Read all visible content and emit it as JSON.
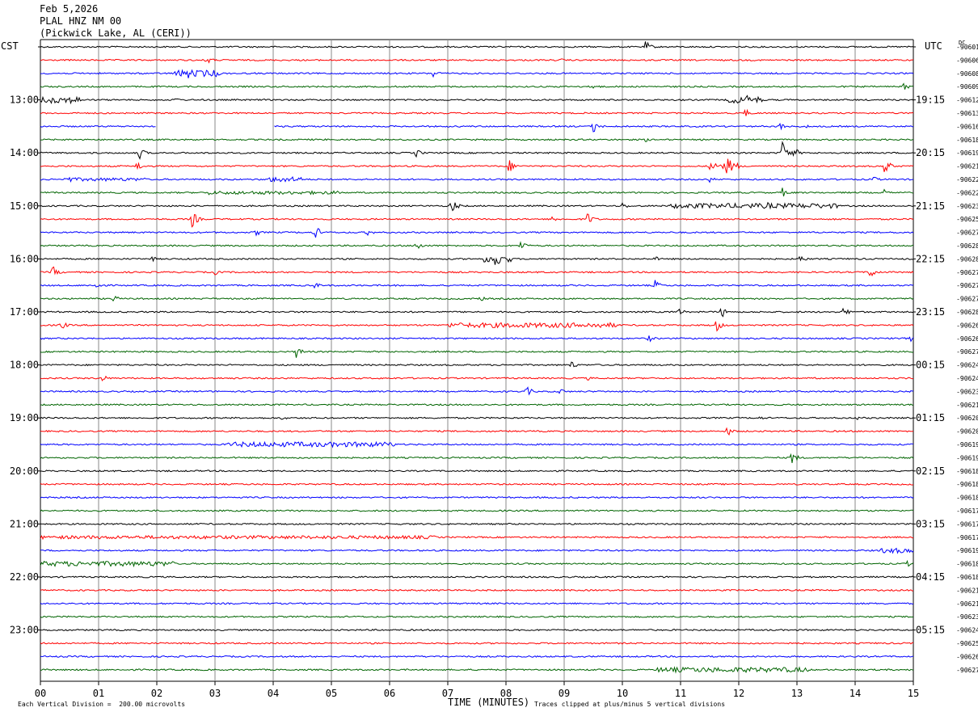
{
  "header": {
    "date": "Feb 5,2026",
    "station": "PLAL HNZ NM 00",
    "location": "(Pickwick Lake, AL (CERI))"
  },
  "chart_data": {
    "type": "line",
    "left_axis_label": "CST",
    "right_axis_label": "UTC",
    "dc_label": "DC",
    "xlabel": "TIME (MINUTES)",
    "xlim": [
      0,
      15
    ],
    "x_ticks": [
      "00",
      "01",
      "02",
      "03",
      "04",
      "05",
      "06",
      "07",
      "08",
      "09",
      "10",
      "11",
      "12",
      "13",
      "14",
      "15"
    ],
    "grid": true,
    "trace_colors": [
      "#000000",
      "#ff0000",
      "#0000ff",
      "#006400"
    ],
    "left_hour_labels": [
      "13:00",
      "14:00",
      "15:00",
      "16:00",
      "17:00",
      "18:00",
      "19:00",
      "20:00",
      "21:00",
      "22:00",
      "23:00"
    ],
    "right_hour_labels": [
      "19:15",
      "20:15",
      "21:15",
      "22:15",
      "23:15",
      "00:15",
      "01:15",
      "02:15",
      "03:15",
      "04:15",
      "05:15"
    ],
    "dc_offsets": [
      "-90601",
      "-90606",
      "-90608",
      "-90609",
      "-90612",
      "-90613",
      "-90616",
      "-90618",
      "-90619",
      "-90621",
      "-90622",
      "-90622",
      "-90623",
      "-90625",
      "-90627",
      "-90628",
      "-90628",
      "-90627",
      "-90627",
      "-90627",
      "-90628",
      "-90626",
      "-90626",
      "-90627",
      "-90624",
      "-90624",
      "-90623",
      "-90621",
      "-90620",
      "-90620",
      "-90619",
      "-90619",
      "-90618",
      "-90618",
      "-90618",
      "-90617",
      "-90617",
      "-90617",
      "-90619",
      "-90618",
      "-90618",
      "-90621",
      "-90621",
      "-90623",
      "-90624",
      "-90625",
      "-90626",
      "-90627"
    ],
    "footer_left": "Each Vertical Division =  200.00 microvolts",
    "footer_right": "Traces clipped at plus/minus 5 vertical divisions",
    "events": [
      {
        "trace": 0,
        "minute": 10.4,
        "amp": 8
      },
      {
        "trace": 1,
        "minute": 2.85,
        "amp": 6
      },
      {
        "trace": 1,
        "minute": 8.95,
        "amp": 2
      },
      {
        "trace": 2,
        "minute": 2.5,
        "amp": 12
      },
      {
        "trace": 2,
        "minute": 6.75,
        "amp": 6
      },
      {
        "trace": 3,
        "minute": 9.5,
        "amp": 6
      },
      {
        "trace": 3,
        "minute": 14.8,
        "amp": 7
      },
      {
        "trace": 4,
        "minute": 0.35,
        "amp": 9
      },
      {
        "trace": 4,
        "minute": 2.3,
        "amp": 4
      },
      {
        "trace": 4,
        "minute": 12.1,
        "amp": 9
      },
      {
        "trace": 5,
        "minute": 12.1,
        "amp": 6
      },
      {
        "trace": 6,
        "minute": 9.5,
        "amp": 9
      },
      {
        "trace": 6,
        "minute": 12.7,
        "amp": 6
      },
      {
        "trace": 6,
        "minute": 13.1,
        "amp": 4
      },
      {
        "trace": 7,
        "minute": 10.4,
        "amp": 3
      },
      {
        "trace": 8,
        "minute": 1.7,
        "amp": 8
      },
      {
        "trace": 8,
        "minute": 6.45,
        "amp": 6
      },
      {
        "trace": 8,
        "minute": 12.75,
        "amp": 16
      },
      {
        "trace": 8,
        "minute": 12.95,
        "amp": 7
      },
      {
        "trace": 9,
        "minute": 1.65,
        "amp": 7
      },
      {
        "trace": 9,
        "minute": 8.05,
        "amp": 9
      },
      {
        "trace": 9,
        "minute": 11.8,
        "amp": 14
      },
      {
        "trace": 9,
        "minute": 14.5,
        "amp": 12
      },
      {
        "trace": 10,
        "minute": 0.5,
        "amp": 4
      },
      {
        "trace": 10,
        "minute": 4.1,
        "amp": 6
      },
      {
        "trace": 10,
        "minute": 11.5,
        "amp": 4
      },
      {
        "trace": 10,
        "minute": 14.3,
        "amp": 5
      },
      {
        "trace": 11,
        "minute": 2.9,
        "amp": 4
      },
      {
        "trace": 11,
        "minute": 12.75,
        "amp": 6
      },
      {
        "trace": 11,
        "minute": 14.5,
        "amp": 4
      },
      {
        "trace": 12,
        "minute": 7.05,
        "amp": 12
      },
      {
        "trace": 12,
        "minute": 10.0,
        "amp": 5
      },
      {
        "trace": 12,
        "minute": 12.5,
        "amp": 5
      },
      {
        "trace": 13,
        "minute": 2.6,
        "amp": 12
      },
      {
        "trace": 13,
        "minute": 8.8,
        "amp": 5
      },
      {
        "trace": 13,
        "minute": 9.4,
        "amp": 9
      },
      {
        "trace": 14,
        "minute": 3.7,
        "amp": 5
      },
      {
        "trace": 14,
        "minute": 4.7,
        "amp": 12
      },
      {
        "trace": 14,
        "minute": 5.6,
        "amp": 6
      },
      {
        "trace": 15,
        "minute": 6.45,
        "amp": 8
      },
      {
        "trace": 15,
        "minute": 8.25,
        "amp": 7
      },
      {
        "trace": 16,
        "minute": 1.9,
        "amp": 4
      },
      {
        "trace": 16,
        "minute": 7.8,
        "amp": 16
      },
      {
        "trace": 16,
        "minute": 10.55,
        "amp": 4
      },
      {
        "trace": 16,
        "minute": 13.05,
        "amp": 6
      },
      {
        "trace": 17,
        "minute": 0.2,
        "amp": 9
      },
      {
        "trace": 17,
        "minute": 3.0,
        "amp": 4
      },
      {
        "trace": 17,
        "minute": 14.25,
        "amp": 9
      },
      {
        "trace": 18,
        "minute": 0.95,
        "amp": 6
      },
      {
        "trace": 18,
        "minute": 4.7,
        "amp": 5
      },
      {
        "trace": 18,
        "minute": 10.55,
        "amp": 8
      },
      {
        "trace": 19,
        "minute": 1.25,
        "amp": 5
      },
      {
        "trace": 19,
        "minute": 7.55,
        "amp": 4
      },
      {
        "trace": 20,
        "minute": 10.95,
        "amp": 6
      },
      {
        "trace": 20,
        "minute": 11.7,
        "amp": 8
      },
      {
        "trace": 20,
        "minute": 13.8,
        "amp": 7
      },
      {
        "trace": 21,
        "minute": 0.35,
        "amp": 7
      },
      {
        "trace": 21,
        "minute": 11.6,
        "amp": 10
      },
      {
        "trace": 22,
        "minute": 10.45,
        "amp": 5
      },
      {
        "trace": 22,
        "minute": 14.95,
        "amp": 4
      },
      {
        "trace": 23,
        "minute": 4.4,
        "amp": 9
      },
      {
        "trace": 24,
        "minute": 9.1,
        "amp": 7
      },
      {
        "trace": 25,
        "minute": 1.05,
        "amp": 6
      },
      {
        "trace": 25,
        "minute": 9.4,
        "amp": 3
      },
      {
        "trace": 26,
        "minute": 8.35,
        "amp": 7
      },
      {
        "trace": 26,
        "minute": 8.9,
        "amp": 6
      },
      {
        "trace": 28,
        "minute": 4.15,
        "amp": 3
      },
      {
        "trace": 28,
        "minute": 12.35,
        "amp": 3
      },
      {
        "trace": 28,
        "minute": 14.05,
        "amp": 3
      },
      {
        "trace": 29,
        "minute": 11.8,
        "amp": 7
      },
      {
        "trace": 31,
        "minute": 12.9,
        "amp": 10
      },
      {
        "trace": 38,
        "minute": 14.65,
        "amp": 4
      },
      {
        "trace": 39,
        "minute": 14.9,
        "amp": 4
      }
    ],
    "noisy_segments": [
      {
        "trace": 2,
        "from": 2.3,
        "to": 3.1,
        "amp": 4
      },
      {
        "trace": 4,
        "from": 0.0,
        "to": 0.7,
        "amp": 4
      },
      {
        "trace": 4,
        "from": 11.8,
        "to": 12.4,
        "amp": 4
      },
      {
        "trace": 9,
        "from": 11.5,
        "to": 12.0,
        "amp": 4
      },
      {
        "trace": 10,
        "from": 0.4,
        "to": 1.8,
        "amp": 2
      },
      {
        "trace": 10,
        "from": 3.9,
        "to": 4.5,
        "amp": 3
      },
      {
        "trace": 11,
        "from": 2.9,
        "to": 5.2,
        "amp": 2
      },
      {
        "trace": 12,
        "from": 10.8,
        "to": 13.7,
        "amp": 3
      },
      {
        "trace": 16,
        "from": 7.6,
        "to": 8.1,
        "amp": 4
      },
      {
        "trace": 21,
        "from": 7.0,
        "to": 9.9,
        "amp": 3
      },
      {
        "trace": 30,
        "from": 3.2,
        "to": 6.1,
        "amp": 3
      },
      {
        "trace": 37,
        "from": 0.0,
        "to": 6.8,
        "amp": 2
      },
      {
        "trace": 38,
        "from": 14.4,
        "to": 15.0,
        "amp": 3
      },
      {
        "trace": 39,
        "from": 0.0,
        "to": 2.3,
        "amp": 3
      },
      {
        "trace": 47,
        "from": 10.6,
        "to": 13.2,
        "amp": 3
      }
    ],
    "gaps": [
      {
        "trace": 6,
        "from": 2.0,
        "to": 4.0
      }
    ]
  }
}
